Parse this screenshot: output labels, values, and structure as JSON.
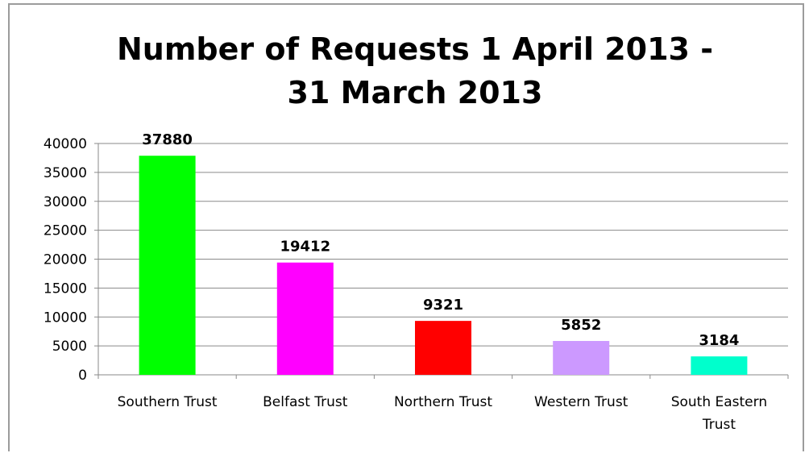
{
  "chart_data": {
    "type": "bar",
    "title_lines": [
      "Number of Requests 1 April 2013 -",
      "31 March 2013"
    ],
    "categories": [
      "Southern Trust",
      "Belfast Trust",
      "Northern Trust",
      "Western Trust",
      "South Eastern Trust"
    ],
    "category_lines": [
      [
        "Southern Trust"
      ],
      [
        "Belfast Trust"
      ],
      [
        "Northern Trust"
      ],
      [
        "Western Trust"
      ],
      [
        "South Eastern",
        "Trust"
      ]
    ],
    "values": [
      37880,
      19412,
      9321,
      5852,
      3184
    ],
    "data_labels": [
      "37880",
      "19412",
      "9321",
      "5852",
      "3184"
    ],
    "bar_colors": [
      "#00ff00",
      "#ff00ff",
      "#ff0000",
      "#cc99ff",
      "#00ffcc"
    ],
    "ylim": [
      0,
      40000
    ],
    "yticks": [
      0,
      5000,
      10000,
      15000,
      20000,
      25000,
      30000,
      35000,
      40000
    ],
    "ytick_labels": [
      "0",
      "5000",
      "10000",
      "15000",
      "20000",
      "25000",
      "30000",
      "35000",
      "40000"
    ],
    "grid": true,
    "legend": "none"
  }
}
